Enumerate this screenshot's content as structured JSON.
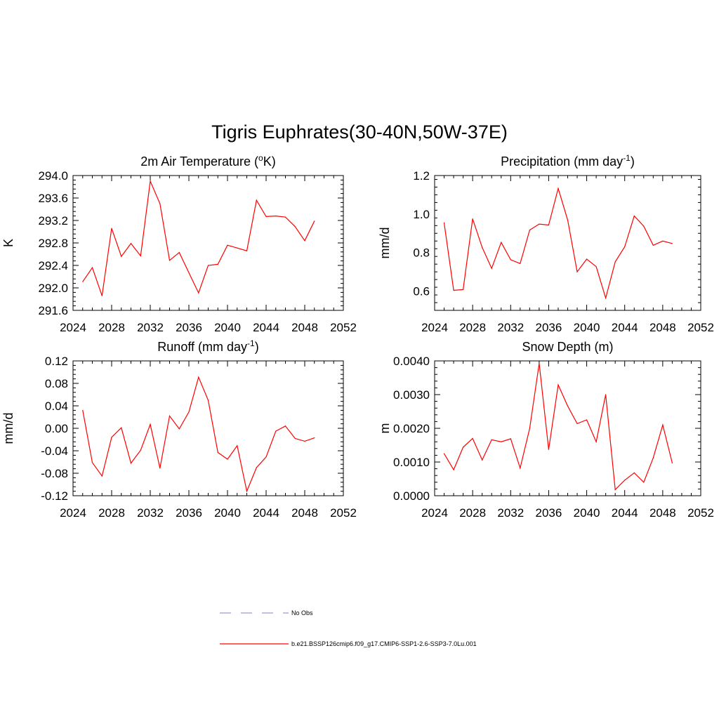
{
  "title": "Tigris Euphrates(30-40N,50W-37E)",
  "line_color": "#ff0000",
  "obs_color": "#9999dd",
  "legend": {
    "items": [
      {
        "label": "No Obs",
        "style": "dashed"
      },
      {
        "label": "b.e21.BSSP126cmip6.f09_g17.CMIP6-SSP1-2.6-SSP3-7.0Lu.001",
        "style": "solid"
      }
    ]
  },
  "chart_data": [
    {
      "type": "line",
      "title": "2m Air Temperature (°K)",
      "ylabel": "K",
      "xlim": [
        2024,
        2052
      ],
      "xticks": [
        2024,
        2028,
        2032,
        2036,
        2040,
        2044,
        2048,
        2052
      ],
      "ylim": [
        291.6,
        294.0
      ],
      "yticks": [
        "291.6",
        "292.0",
        "292.4",
        "292.8",
        "293.2",
        "293.6",
        "294.0"
      ],
      "x": [
        2025,
        2026,
        2027,
        2028,
        2029,
        2030,
        2031,
        2032,
        2033,
        2034,
        2035,
        2036,
        2037,
        2038,
        2039,
        2040,
        2041,
        2042,
        2043,
        2044,
        2045,
        2046,
        2047,
        2048,
        2049
      ],
      "values": [
        292.11,
        292.36,
        291.86,
        293.06,
        292.56,
        292.79,
        292.57,
        293.9,
        293.5,
        292.49,
        292.63,
        292.27,
        291.91,
        292.4,
        292.42,
        292.76,
        292.71,
        292.66,
        293.56,
        293.27,
        293.28,
        293.26,
        293.09,
        292.84,
        293.19
      ]
    },
    {
      "type": "line",
      "title": "Precipitation (mm day⁻¹)",
      "ylabel": "mm/d",
      "xlim": [
        2024,
        2052
      ],
      "xticks": [
        2024,
        2028,
        2032,
        2036,
        2040,
        2044,
        2048,
        2052
      ],
      "ylim": [
        0.5,
        1.2
      ],
      "yticks": [
        "0.6",
        "0.8",
        "1.0",
        "1.2"
      ],
      "x": [
        2025,
        2026,
        2027,
        2028,
        2029,
        2030,
        2031,
        2032,
        2033,
        2034,
        2035,
        2036,
        2037,
        2038,
        2039,
        2040,
        2041,
        2042,
        2043,
        2044,
        2045,
        2046,
        2047,
        2048,
        2049
      ],
      "values": [
        0.955,
        0.604,
        0.608,
        0.975,
        0.827,
        0.718,
        0.853,
        0.763,
        0.743,
        0.917,
        0.948,
        0.943,
        1.133,
        0.969,
        0.7,
        0.766,
        0.727,
        0.564,
        0.752,
        0.83,
        0.99,
        0.937,
        0.838,
        0.86,
        0.847
      ]
    },
    {
      "type": "line",
      "title": "Runoff (mm day⁻¹)",
      "ylabel": "mm/d",
      "xlim": [
        2024,
        2052
      ],
      "xticks": [
        2024,
        2028,
        2032,
        2036,
        2040,
        2044,
        2048,
        2052
      ],
      "ylim": [
        -0.12,
        0.12
      ],
      "yticks": [
        "-0.12",
        "-0.08",
        "-0.04",
        "0.00",
        "0.04",
        "0.08",
        "0.12"
      ],
      "x": [
        2025,
        2026,
        2027,
        2028,
        2029,
        2030,
        2031,
        2032,
        2033,
        2034,
        2035,
        2036,
        2037,
        2038,
        2039,
        2040,
        2041,
        2042,
        2043,
        2044,
        2045,
        2046,
        2047,
        2048,
        2049
      ],
      "values": [
        0.032,
        -0.061,
        -0.085,
        -0.016,
        0.001,
        -0.062,
        -0.039,
        0.007,
        -0.071,
        0.022,
        -0.001,
        0.029,
        0.091,
        0.05,
        -0.043,
        -0.055,
        -0.031,
        -0.112,
        -0.07,
        -0.051,
        -0.005,
        0.004,
        -0.018,
        -0.023,
        -0.017
      ]
    },
    {
      "type": "line",
      "title": "Snow Depth (m)",
      "ylabel": "m",
      "xlim": [
        2024,
        2052
      ],
      "xticks": [
        2024,
        2028,
        2032,
        2036,
        2040,
        2044,
        2048,
        2052
      ],
      "ylim": [
        0.0,
        0.004
      ],
      "yticks": [
        "0.0000",
        "0.0010",
        "0.0020",
        "0.0030",
        "0.0040"
      ],
      "x": [
        2025,
        2026,
        2027,
        2028,
        2029,
        2030,
        2031,
        2032,
        2033,
        2034,
        2035,
        2036,
        2037,
        2038,
        2039,
        2040,
        2041,
        2042,
        2043,
        2044,
        2045,
        2046,
        2047,
        2048,
        2049
      ],
      "values": [
        0.00125,
        0.00077,
        0.00144,
        0.0017,
        0.00106,
        0.00166,
        0.0016,
        0.00169,
        0.00082,
        0.002,
        0.00393,
        0.00137,
        0.00329,
        0.00266,
        0.00214,
        0.00225,
        0.0016,
        0.003,
        0.00018,
        0.00046,
        0.00068,
        0.0004,
        0.00112,
        0.0021,
        0.00097
      ]
    }
  ]
}
